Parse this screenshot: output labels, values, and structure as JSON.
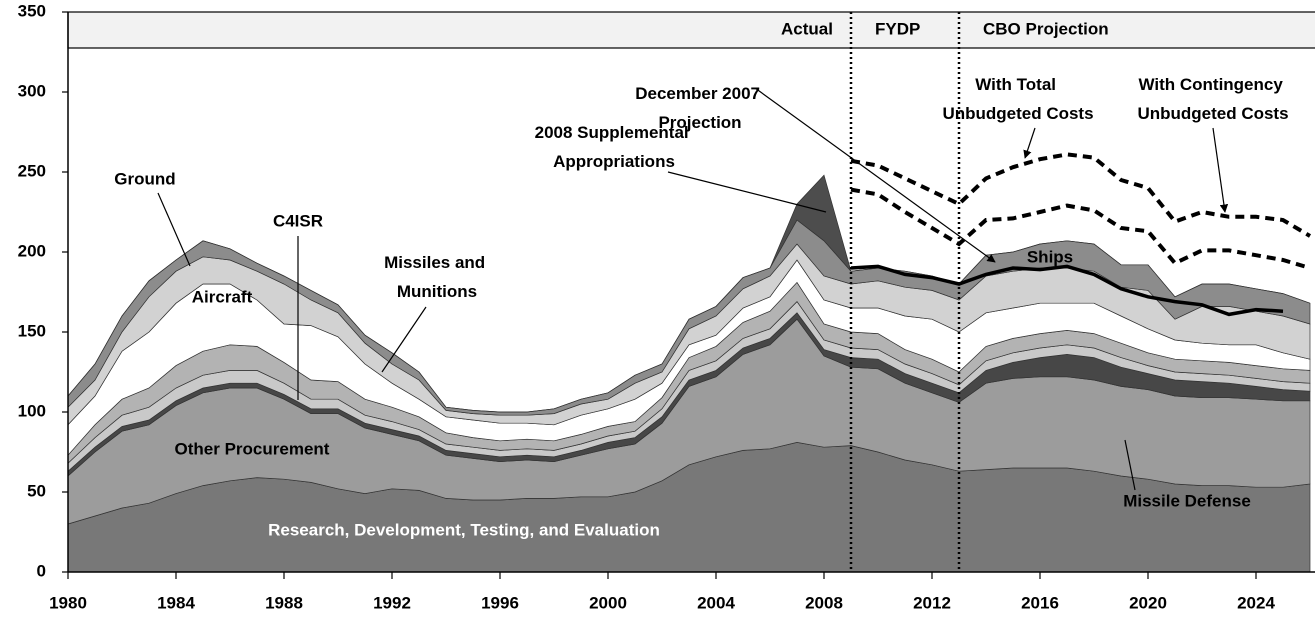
{
  "chart_data": {
    "type": "stacked_area",
    "periods": [
      "Actual",
      "FYDP",
      "CBO Projection"
    ],
    "period_breaks": [
      2009,
      2013
    ],
    "x": [
      1980,
      1981,
      1982,
      1983,
      1984,
      1985,
      1986,
      1987,
      1988,
      1989,
      1990,
      1991,
      1992,
      1993,
      1994,
      1995,
      1996,
      1997,
      1998,
      1999,
      2000,
      2001,
      2002,
      2003,
      2004,
      2005,
      2006,
      2007,
      2008,
      2009,
      2010,
      2011,
      2012,
      2013,
      2014,
      2015,
      2016,
      2017,
      2018,
      2019,
      2020,
      2021,
      2022,
      2023,
      2024,
      2025,
      2026
    ],
    "xlim": [
      1980,
      2026
    ],
    "xticks": [
      1980,
      1984,
      1988,
      1992,
      1996,
      2000,
      2004,
      2008,
      2012,
      2016,
      2020,
      2024
    ],
    "ylim": [
      0,
      350
    ],
    "yticks": [
      0,
      50,
      100,
      150,
      200,
      250,
      300,
      350
    ],
    "series": [
      {
        "name": "Research, Development, Testing, and Evaluation",
        "color": "#787878",
        "values": [
          30,
          35,
          40,
          43,
          49,
          54,
          57,
          59,
          58,
          56,
          52,
          49,
          52,
          51,
          46,
          45,
          45,
          46,
          46,
          47,
          47,
          50,
          57,
          67,
          72,
          76,
          77,
          81,
          78,
          79,
          75,
          70,
          67,
          63,
          64,
          65,
          65,
          65,
          63,
          60,
          58,
          55,
          54,
          54,
          53,
          53,
          55
        ]
      },
      {
        "name": "Other Procurement",
        "color": "#9c9c9c",
        "values": [
          30,
          40,
          48,
          49,
          55,
          58,
          58,
          56,
          50,
          43,
          47,
          41,
          34,
          31,
          27,
          26,
          24,
          24,
          23,
          26,
          30,
          30,
          36,
          49,
          50,
          60,
          65,
          77,
          57,
          49,
          52,
          48,
          45,
          43,
          54,
          56,
          57,
          57,
          57,
          56,
          56,
          55,
          55,
          55,
          55,
          54,
          52
        ]
      },
      {
        "name": "Missile Defense",
        "color": "#474747",
        "values": [
          3,
          3,
          3,
          3,
          3,
          3,
          3,
          3,
          3,
          3,
          3,
          3,
          3,
          3,
          3,
          3,
          3,
          3,
          3,
          3,
          4,
          4,
          4,
          4,
          4,
          4,
          4,
          4,
          4,
          6,
          6,
          6,
          6,
          6,
          8,
          10,
          12,
          14,
          14,
          12,
          10,
          10,
          10,
          9,
          8,
          7,
          6
        ]
      },
      {
        "name": "Missiles and Munitions",
        "color": "#c9c9c9",
        "values": [
          5,
          6,
          7,
          8,
          8,
          8,
          8,
          8,
          7,
          6,
          6,
          5,
          5,
          4,
          4,
          4,
          4,
          4,
          4,
          4,
          4,
          4,
          5,
          6,
          6,
          6,
          6,
          7,
          6,
          6,
          6,
          6,
          6,
          5,
          6,
          6,
          6,
          6,
          6,
          6,
          5,
          5,
          5,
          5,
          5,
          5,
          5
        ]
      },
      {
        "name": "C4ISR",
        "color": "#b3b3b3",
        "values": [
          5,
          8,
          10,
          12,
          14,
          15,
          16,
          15,
          13,
          12,
          11,
          10,
          9,
          8,
          7,
          6,
          6,
          6,
          6,
          6,
          6,
          6,
          7,
          8,
          9,
          10,
          11,
          12,
          10,
          10,
          10,
          9,
          9,
          8,
          9,
          9,
          9,
          9,
          9,
          9,
          8,
          8,
          8,
          8,
          8,
          8,
          8
        ]
      },
      {
        "name": "Aircraft",
        "color": "#ffffff",
        "values": [
          19,
          18,
          30,
          35,
          39,
          42,
          38,
          29,
          24,
          34,
          28,
          22,
          15,
          11,
          10,
          11,
          11,
          10,
          10,
          12,
          11,
          14,
          9,
          8,
          7,
          9,
          9,
          14,
          15,
          15,
          16,
          21,
          25,
          25,
          21,
          19,
          19,
          17,
          19,
          17,
          15,
          12,
          11,
          11,
          13,
          10,
          7
        ]
      },
      {
        "name": "Ships",
        "color": "#d2d2d2",
        "values": [
          11,
          10,
          12,
          22,
          20,
          17,
          15,
          18,
          25,
          16,
          15,
          13,
          12,
          12,
          4,
          4,
          5,
          5,
          7,
          7,
          6,
          10,
          7,
          10,
          12,
          12,
          13,
          10,
          15,
          15,
          17,
          18,
          18,
          20,
          23,
          23,
          22,
          22,
          20,
          18,
          24,
          13,
          23,
          24,
          21,
          23,
          22
        ]
      },
      {
        "name": "Ground",
        "color": "#8c8c8c",
        "values": [
          7,
          10,
          10,
          10,
          7,
          10,
          7,
          5,
          5,
          6,
          5,
          5,
          7,
          5,
          2,
          2,
          2,
          2,
          3,
          3,
          4,
          5,
          5,
          6,
          6,
          7,
          5,
          15,
          22,
          8,
          8,
          10,
          9,
          10,
          13,
          12,
          15,
          17,
          17,
          14,
          16,
          14,
          14,
          14,
          14,
          14,
          13
        ]
      },
      {
        "name": "2008 Supplemental Appropriations",
        "color": "#4d4d4d",
        "values": [
          0,
          0,
          0,
          0,
          0,
          0,
          0,
          0,
          0,
          0,
          0,
          0,
          0,
          0,
          0,
          0,
          0,
          0,
          0,
          0,
          0,
          0,
          0,
          0,
          0,
          0,
          0,
          10,
          41,
          0,
          0,
          0,
          0,
          0,
          0,
          0,
          0,
          0,
          0,
          0,
          0,
          0,
          0,
          0,
          0,
          0,
          0
        ]
      },
      {
        "name": "December 2007 Projection",
        "kind": "line",
        "style": "solid",
        "color": "#000000",
        "values": [
          null,
          null,
          null,
          null,
          null,
          null,
          null,
          null,
          null,
          null,
          null,
          null,
          null,
          null,
          null,
          null,
          null,
          null,
          null,
          null,
          null,
          null,
          null,
          null,
          null,
          null,
          null,
          null,
          null,
          190,
          191,
          186,
          184,
          180,
          186,
          190,
          189,
          191,
          186,
          177,
          172,
          169,
          167,
          161,
          164,
          163,
          null
        ]
      },
      {
        "name": "With Total Unbudgeted Costs",
        "kind": "line",
        "style": "dashed",
        "color": "#000000",
        "values": [
          null,
          null,
          null,
          null,
          null,
          null,
          null,
          null,
          null,
          null,
          null,
          null,
          null,
          null,
          null,
          null,
          null,
          null,
          null,
          null,
          null,
          null,
          null,
          null,
          null,
          null,
          null,
          null,
          null,
          257,
          254,
          246,
          238,
          230,
          246,
          253,
          258,
          261,
          259,
          245,
          240,
          219,
          225,
          222,
          222,
          220,
          210
        ]
      },
      {
        "name": "With Contingency Unbudgeted Costs",
        "kind": "line",
        "style": "dashed",
        "color": "#000000",
        "values": [
          null,
          null,
          null,
          null,
          null,
          null,
          null,
          null,
          null,
          null,
          null,
          null,
          null,
          null,
          null,
          null,
          null,
          null,
          null,
          null,
          null,
          null,
          null,
          null,
          null,
          null,
          null,
          null,
          null,
          239,
          236,
          225,
          215,
          205,
          220,
          221,
          225,
          229,
          226,
          215,
          213,
          193,
          201,
          201,
          198,
          195,
          190
        ]
      }
    ]
  }
}
